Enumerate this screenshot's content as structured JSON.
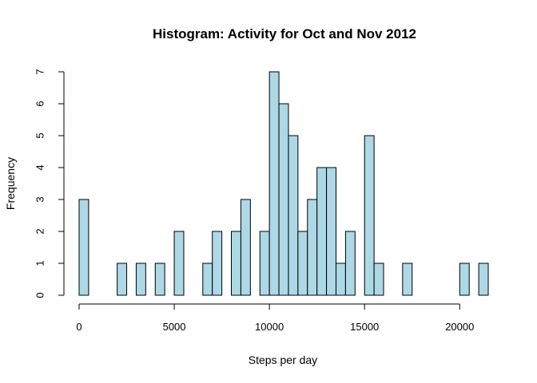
{
  "chart_data": {
    "type": "bar",
    "title": "Histogram: Activity for Oct and Nov 2012",
    "xlabel": "Steps per day",
    "ylabel": "Frequency",
    "bin_width": 500,
    "x_start": 0,
    "xlim": [
      0,
      21500
    ],
    "ylim": [
      0,
      7
    ],
    "x_ticks": [
      0,
      5000,
      10000,
      15000,
      20000
    ],
    "y_ticks": [
      0,
      1,
      2,
      3,
      4,
      5,
      6,
      7
    ],
    "counts": [
      3,
      0,
      0,
      0,
      1,
      0,
      1,
      0,
      1,
      0,
      2,
      0,
      0,
      1,
      2,
      0,
      2,
      3,
      0,
      2,
      7,
      6,
      5,
      2,
      3,
      4,
      4,
      1,
      2,
      0,
      5,
      1,
      0,
      0,
      1,
      0,
      0,
      0,
      0,
      0,
      1,
      0,
      1
    ],
    "bar_color": "#add8e6",
    "grid": false
  }
}
